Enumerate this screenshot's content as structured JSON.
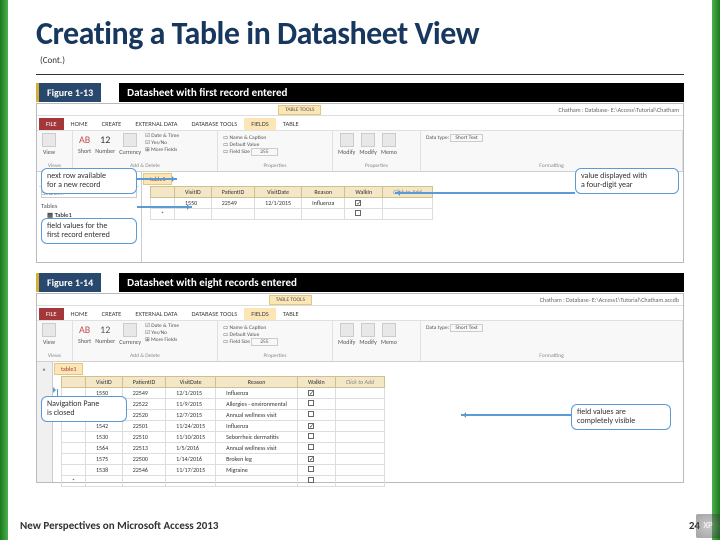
{
  "slide": {
    "title": "Creating a Table in Datasheet View",
    "cont": "(Cont.)",
    "footer_text": "New Perspectives on Microsoft Access 2013",
    "page_number": "24"
  },
  "figure1": {
    "label": "Figure 1-13",
    "caption": "Datasheet with first record entered",
    "table_tools": "TABLE TOOLS",
    "title_path": "Chatham : Database- E:\\Access\\Tutorial\\Chatham",
    "tabs": {
      "file": "FILE",
      "home": "HOME",
      "create": "CREATE",
      "external": "EXTERNAL DATA",
      "dbtools": "DATABASE TOOLS",
      "fields": "FIELDS",
      "table": "TABLE"
    },
    "ribbon": {
      "views": "Views",
      "view": "View",
      "ab": "AB",
      "twelve": "12",
      "short": "Short",
      "number": "Number",
      "currency": "Currency",
      "datetime": "Date & Time",
      "yesno": "Yes/No",
      "morefields": "More Fields",
      "add_delete": "Add & Delete",
      "namecap": "Name & Caption",
      "default": "Default Value",
      "fieldsize_lbl": "Field Size",
      "fieldsize_val": "255",
      "properties": "Properties",
      "modify1": "Modify",
      "lookup": "Lookups",
      "modify2": "Modify",
      "expr": "Expression",
      "memo": "Memo",
      "settings": "Settings",
      "datatype_lbl": "Data type:",
      "datatype_val": "Short Text",
      "formatting": "Formatting"
    },
    "nav": {
      "title": "All Access Obje...",
      "search_lbl": "Search...",
      "tables_lbl": "Tables",
      "table_item": "Table1"
    },
    "tab_name": "table1",
    "columns": [
      "VisitID",
      "PatientID",
      "VisitDate",
      "Reason",
      "WalkIn",
      "Click to Add"
    ],
    "row1": {
      "visitid": "1550",
      "patientid": "22549",
      "visitdate": "12/1/2015",
      "reason": "Influenza",
      "walkin_checked": true
    },
    "callouts": {
      "next_row": "next row available\nfor a new record",
      "field_values": "field values for the\nfirst record entered",
      "four_digit": "value displayed with\na four-digit year"
    }
  },
  "figure2": {
    "label": "Figure 1-14",
    "caption": "Datasheet with eight records entered",
    "title_path": "Chatham : Database- E:\\Access1\\Tutorial\\Chatham.accdb",
    "tab_name": "table1",
    "columns": [
      "VisitID",
      "PatientID",
      "VisitDate",
      "Reason",
      "WalkIn",
      "Click to Add"
    ],
    "rows": [
      {
        "v": "1550",
        "p": "22549",
        "d": "12/1/2015",
        "r": "Influenza",
        "w": true
      },
      {
        "v": "1527",
        "p": "22522",
        "d": "11/9/2015",
        "r": "Allergies - environmental",
        "w": false
      },
      {
        "v": "1555",
        "p": "22520",
        "d": "12/7/2015",
        "r": "Annual wellness visit",
        "w": false
      },
      {
        "v": "1542",
        "p": "22501",
        "d": "11/24/2015",
        "r": "Influenza",
        "w": true
      },
      {
        "v": "1530",
        "p": "22510",
        "d": "11/10/2015",
        "r": "Seborrheic dermatitis",
        "w": false
      },
      {
        "v": "1564",
        "p": "22513",
        "d": "1/5/2016",
        "r": "Annual wellness visit",
        "w": false
      },
      {
        "v": "1575",
        "p": "22500",
        "d": "1/14/2016",
        "r": "Broken leg",
        "w": true
      },
      {
        "v": "1538",
        "p": "22546",
        "d": "11/17/2015",
        "r": "Migraine",
        "w": false
      }
    ],
    "callouts": {
      "nav_closed": "Navigation Pane\nis closed",
      "completely_visible": "field values are\ncompletely visible"
    }
  }
}
